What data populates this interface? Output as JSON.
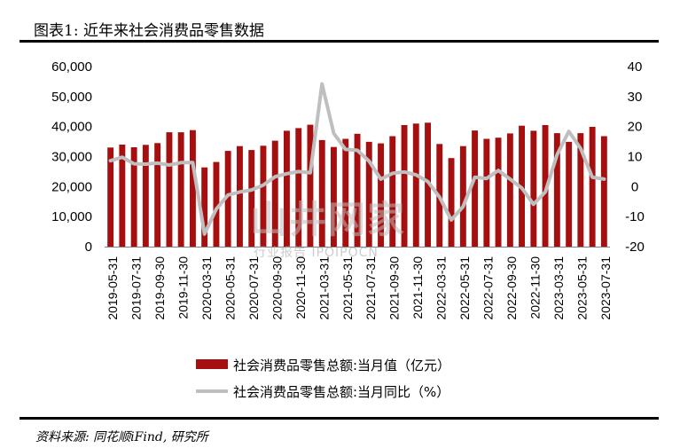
{
  "header": {
    "title": "图表1:  近年来社会消费品零售数据"
  },
  "footer": {
    "source": "资料来源:  同花顺iFind,  研究所"
  },
  "watermark": {
    "main": "山井网家",
    "sub": "行业报告 IPOIPOCN"
  },
  "chart_data": {
    "type": "bar",
    "title": "",
    "x_tick_labels": [
      "2019-05-31",
      "2019-07-31",
      "2019-09-30",
      "2019-11-30",
      "2020-03-31",
      "2020-05-31",
      "2020-07-31",
      "2020-09-30",
      "2020-11-30",
      "2021-03-31",
      "2021-05-31",
      "2021-07-31",
      "2021-09-30",
      "2021-11-30",
      "2022-03-31",
      "2022-05-31",
      "2022-07-31",
      "2022-09-30",
      "2022-11-30",
      "2023-03-31",
      "2023-05-31",
      "2023-07-31"
    ],
    "y_left": {
      "ticks": [
        "60,000",
        "50,000",
        "40,000",
        "30,000",
        "20,000",
        "10,000",
        "0"
      ],
      "range": [
        0,
        60000
      ]
    },
    "y_right": {
      "ticks": [
        "40",
        "30",
        "20",
        "10",
        "0",
        "-10",
        "-20"
      ],
      "range": [
        -20,
        40
      ]
    },
    "series": [
      {
        "name": "社会消费品零售总额:当月值（亿元）",
        "type": "bar",
        "axis": "left",
        "color": "#A50F0F",
        "x": [
          "2019-05",
          "2019-06",
          "2019-07",
          "2019-08",
          "2019-09",
          "2019-10",
          "2019-11",
          "2019-12",
          "2020-03",
          "2020-04",
          "2020-05",
          "2020-06",
          "2020-07",
          "2020-08",
          "2020-09",
          "2020-10",
          "2020-11",
          "2020-12",
          "2021-03",
          "2021-04",
          "2021-05",
          "2021-06",
          "2021-07",
          "2021-08",
          "2021-09",
          "2021-10",
          "2021-11",
          "2021-12",
          "2022-03",
          "2022-04",
          "2022-05",
          "2022-06",
          "2022-07",
          "2022-08",
          "2022-09",
          "2022-10",
          "2022-11",
          "2022-12",
          "2023-03",
          "2023-04",
          "2023-05",
          "2023-06",
          "2023-07"
        ],
        "values": [
          33000,
          34000,
          33100,
          33900,
          34500,
          38100,
          38100,
          38800,
          26400,
          28200,
          31900,
          33500,
          32200,
          33600,
          35300,
          38600,
          39500,
          40600,
          35500,
          33200,
          35900,
          37600,
          34900,
          34400,
          36800,
          40500,
          41000,
          41300,
          34200,
          29500,
          33500,
          38700,
          35900,
          36300,
          37700,
          40300,
          38600,
          40500,
          37800,
          34900,
          37800,
          39900,
          36800
        ]
      },
      {
        "name": "社会消费品零售总额:当月同比（%）",
        "type": "line",
        "axis": "right",
        "color": "#BFBFBF",
        "x": [
          "2019-05",
          "2019-06",
          "2019-07",
          "2019-08",
          "2019-09",
          "2019-10",
          "2019-11",
          "2019-12",
          "2020-03",
          "2020-04",
          "2020-05",
          "2020-06",
          "2020-07",
          "2020-08",
          "2020-09",
          "2020-10",
          "2020-11",
          "2020-12",
          "2021-03",
          "2021-04",
          "2021-05",
          "2021-06",
          "2021-07",
          "2021-08",
          "2021-09",
          "2021-10",
          "2021-11",
          "2021-12",
          "2022-03",
          "2022-04",
          "2022-05",
          "2022-06",
          "2022-07",
          "2022-08",
          "2022-09",
          "2022-10",
          "2022-11",
          "2022-12",
          "2023-03",
          "2023-04",
          "2023-05",
          "2023-06",
          "2023-07"
        ],
        "values": [
          8.6,
          9.8,
          7.6,
          7.5,
          7.8,
          7.2,
          8.0,
          8.0,
          -15.8,
          -7.5,
          -2.8,
          -1.8,
          -1.1,
          0.5,
          3.3,
          4.3,
          5.0,
          4.6,
          34.2,
          17.7,
          12.4,
          12.1,
          8.5,
          2.5,
          4.4,
          4.9,
          3.9,
          1.7,
          -3.5,
          -11.1,
          -6.7,
          3.1,
          2.7,
          5.4,
          2.5,
          -0.5,
          -5.9,
          -1.8,
          10.6,
          18.4,
          12.7,
          3.1,
          2.5
        ]
      }
    ],
    "legend_position": "bottom",
    "grid": false
  }
}
